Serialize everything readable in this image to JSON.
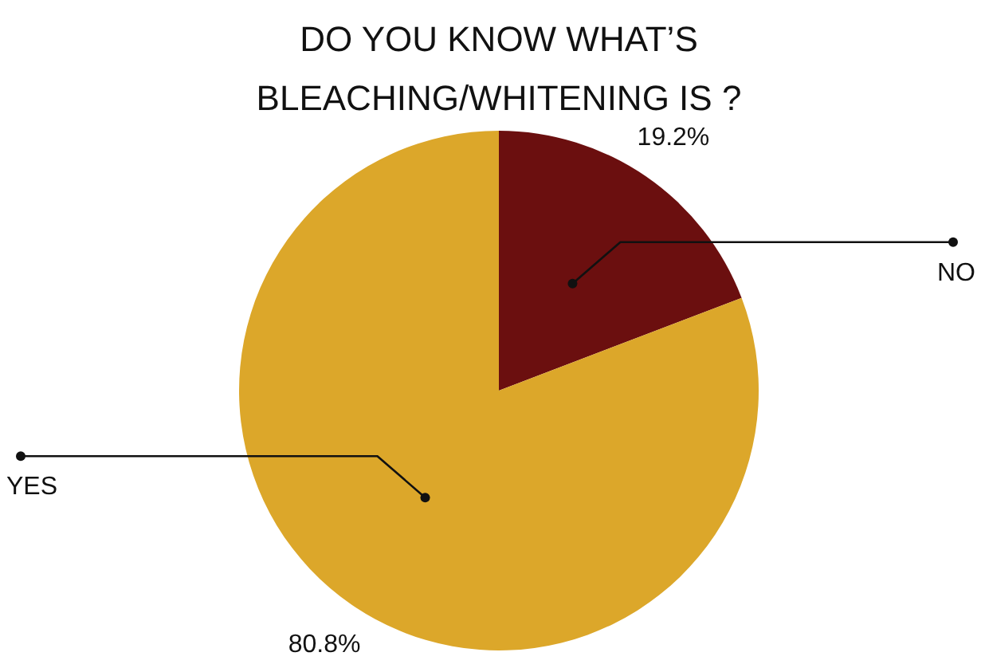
{
  "chart_data": {
    "type": "pie",
    "title": "DO YOU KNOW WHAT’S BLEACHING/WHITENING IS ?",
    "categories": [
      "NO",
      "YES"
    ],
    "values": [
      19.2,
      80.8
    ],
    "colors": [
      "#6b0f0f",
      "#dca72a"
    ],
    "value_labels": [
      "19.2%",
      "80.8%"
    ]
  }
}
